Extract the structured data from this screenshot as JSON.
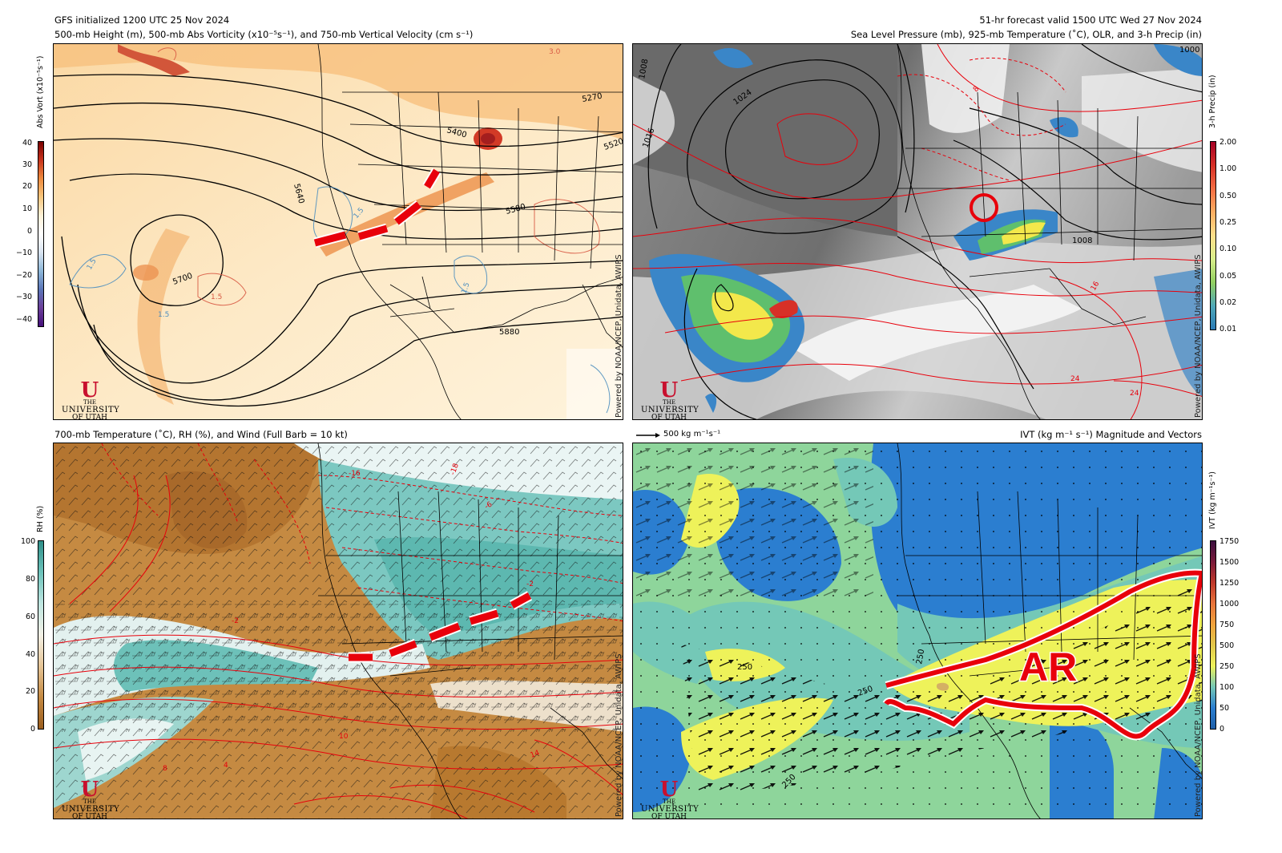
{
  "header": {
    "init": "GFS initialized 1200 UTC 25 Nov 2024",
    "valid": "51-hr forecast valid 1500 UTC Wed 27 Nov 2024"
  },
  "panels": {
    "top_left": {
      "title": "500-mb Height (m), 500-mb Abs Vorticity (x10⁻⁵s⁻¹), and 750-mb Vertical Velocity (cm s⁻¹)",
      "cbar_title": "Abs Vort (x10⁻⁵s⁻¹)",
      "cbar_ticks": [
        "40",
        "30",
        "20",
        "10",
        "0",
        "−10",
        "−20",
        "−30",
        "−40"
      ],
      "contour_labels": [
        "5640",
        "5400",
        "5520",
        "5580",
        "5700",
        "5880",
        "5270",
        "1.5",
        "3.0",
        "1.5",
        "1.5",
        "1.5",
        "1.5"
      ]
    },
    "top_right": {
      "title": "Sea Level Pressure (mb), 925-mb Temperature (˚C), OLR, and 3-h Precip (in)",
      "cbar_title": "3-h Precip (in)",
      "cbar_ticks": [
        "2.00",
        "1.00",
        "0.50",
        "0.25",
        "0.10",
        "0.05",
        "0.02",
        "0.01"
      ],
      "contour_labels": [
        "1024",
        "1016",
        "1008",
        "1008",
        "1000",
        "16",
        "24",
        "24",
        "8"
      ]
    },
    "bottom_left": {
      "title": "700-mb Temperature (˚C), RH (%), and Wind (Full Barb = 10 kt)",
      "cbar_title": "RH (%)",
      "cbar_ticks": [
        "100",
        "80",
        "60",
        "40",
        "20",
        "0"
      ],
      "contour_labels": [
        "-18",
        "-16",
        "-6",
        "-2",
        "-2",
        "10",
        "14",
        "8",
        "4"
      ]
    },
    "bottom_right": {
      "title": "IVT (kg m⁻¹ s⁻¹) Magnitude and Vectors",
      "ref_vector": "500 kg m⁻¹s⁻¹",
      "cbar_title": "IVT (kg m⁻¹s⁻¹)",
      "cbar_ticks": [
        "1750",
        "1500",
        "1250",
        "1000",
        "750",
        "500",
        "250",
        "100",
        "50",
        "0"
      ],
      "contour_labels": [
        "250",
        "250",
        "250",
        "250"
      ],
      "annotation": "AR"
    }
  },
  "credit": "Powered by NOAA/NCEP, Unidata, AWIPS",
  "logo": {
    "the": "THE",
    "university": "UNIVERSITY",
    "of": "OF",
    "state": "UTAH",
    "mark": "U"
  },
  "colors": {
    "annotation_red": "#e8000b",
    "vort_high": "#c0391b",
    "vort_mid": "#f2a55b",
    "vort_low": "#fbe6b8",
    "olr_dark": "#6b6b6b",
    "olr_light": "#e9e9e9",
    "precip_blue": "#3a86c8",
    "precip_green": "#5fbf6d",
    "precip_yellow": "#f3e84b",
    "precip_red": "#d73027",
    "rh_brown": "#b7782f",
    "rh_teal": "#5db8b0",
    "ivt_blue": "#2b7ed0",
    "ivt_green": "#8ed59b",
    "ivt_yellow": "#eef25a"
  }
}
